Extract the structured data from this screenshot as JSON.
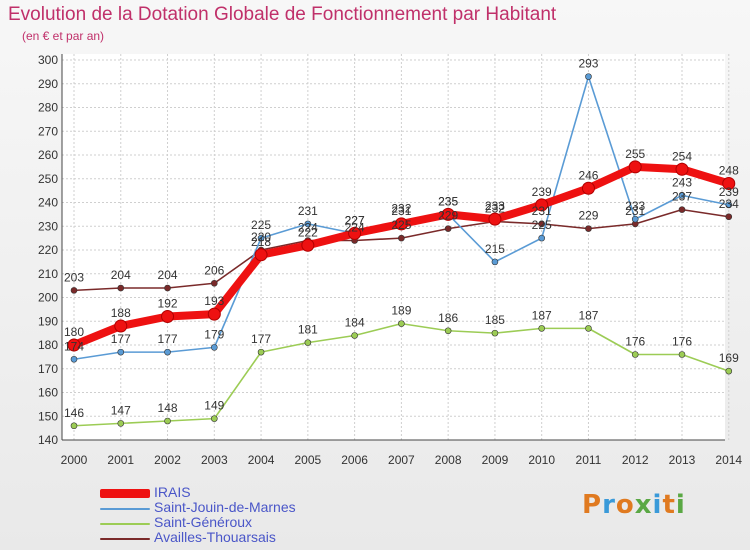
{
  "header": {
    "title": "Evolution de la Dotation Globale de Fonctionnement par Habitant",
    "subtitle": "(en € et par an)"
  },
  "logo": {
    "text": "Proxiti",
    "colors": [
      "#e07a20",
      "#3a9ad9",
      "#e07a20",
      "#5aa844",
      "#3a9ad9",
      "#e07a20",
      "#5aa844"
    ]
  },
  "chart_data": {
    "type": "line",
    "x": [
      "2000",
      "2001",
      "2002",
      "2003",
      "2004",
      "2005",
      "2006",
      "2007",
      "2008",
      "2009",
      "2010",
      "2011",
      "2012",
      "2013",
      "2014"
    ],
    "ylim": [
      140,
      300
    ],
    "yticks": [
      140,
      150,
      160,
      170,
      180,
      190,
      200,
      210,
      220,
      230,
      240,
      250,
      260,
      270,
      280,
      290,
      300
    ],
    "grid": true,
    "legend_position": "bottom-left",
    "series": [
      {
        "name": "IRAIS",
        "color": "#ee1111",
        "values": [
          180,
          188,
          192,
          193,
          218,
          222,
          227,
          231,
          235,
          233,
          239,
          246,
          255,
          254,
          248
        ]
      },
      {
        "name": "Saint-Jouin-de-Marnes",
        "color": "#5a9bd5",
        "values": [
          174,
          177,
          177,
          179,
          225,
          231,
          227,
          232,
          235,
          215,
          225,
          293,
          233,
          243,
          239
        ]
      },
      {
        "name": "Saint-Généroux",
        "color": "#9ccc55",
        "values": [
          146,
          147,
          148,
          149,
          177,
          181,
          184,
          189,
          186,
          185,
          187,
          187,
          176,
          176,
          169
        ]
      },
      {
        "name": "Availles-Thouarsais",
        "color": "#7a2a2a",
        "values": [
          203,
          204,
          204,
          206,
          220,
          224,
          224,
          225,
          229,
          232,
          231,
          229,
          231,
          237,
          234
        ]
      }
    ]
  }
}
